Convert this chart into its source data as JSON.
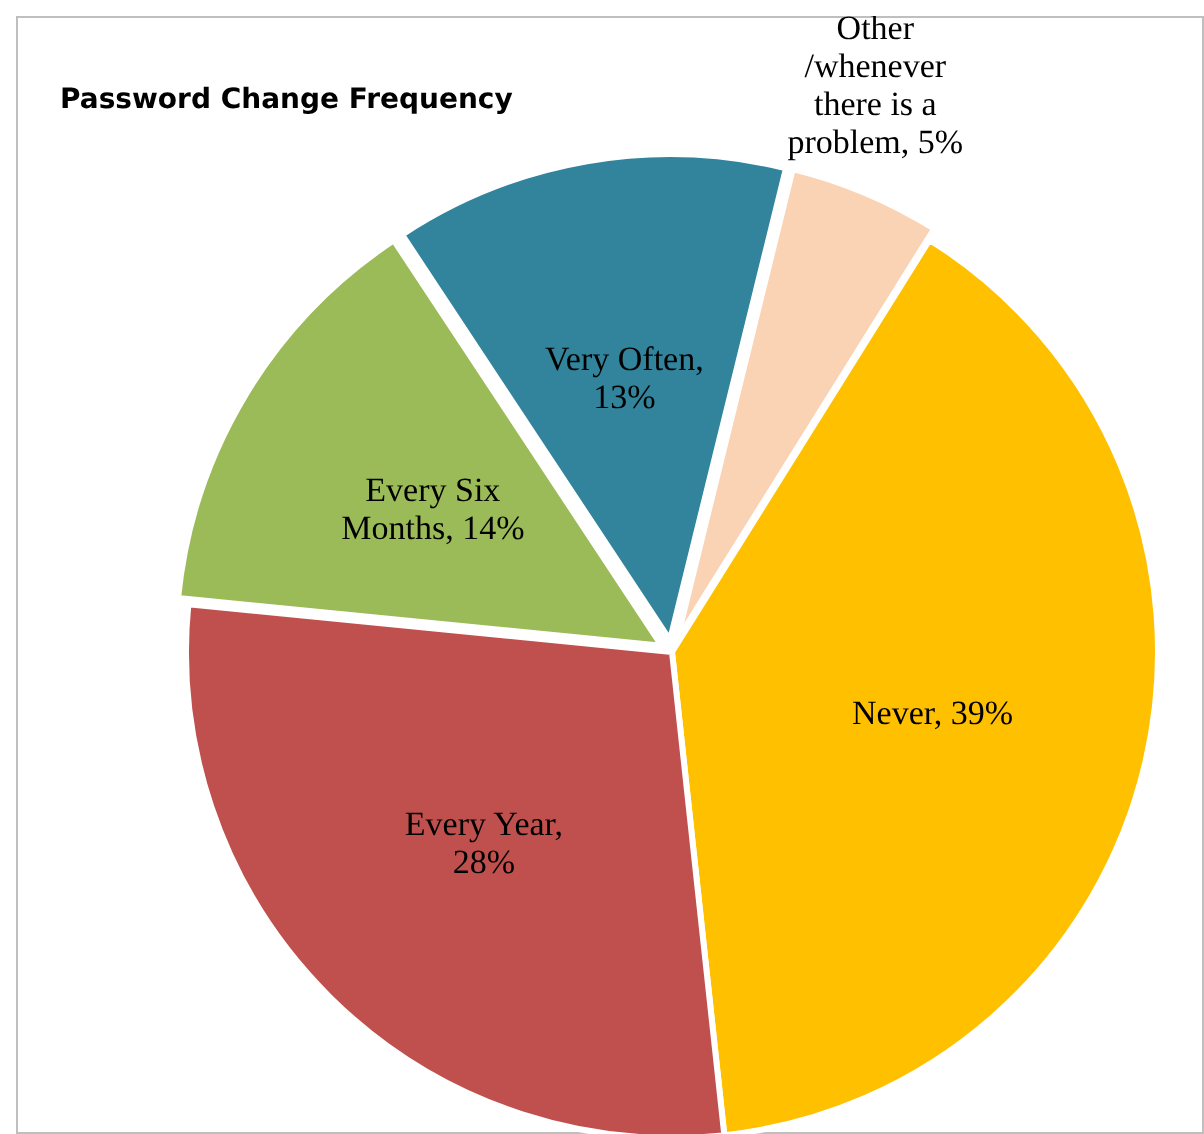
{
  "chart_data": {
    "type": "pie",
    "title": "Password Change Frequency",
    "categories": [
      "Never, 39%",
      "Every Year, 28%",
      "Every Six Months, 14%",
      "Very Often, 13%",
      "Other /whenever there is a problem, 5%"
    ],
    "values": [
      39,
      28,
      14,
      13,
      5
    ],
    "colors": [
      "#ffc000",
      "#c0504d",
      "#9bbb59",
      "#31849b",
      "#fad3b5"
    ]
  }
}
